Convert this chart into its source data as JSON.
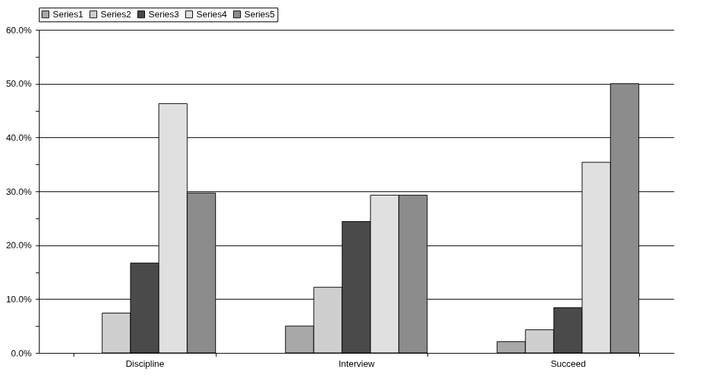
{
  "chart_data": {
    "type": "bar",
    "categories": [
      "Discipline",
      "Interview",
      "Succeed"
    ],
    "series": [
      {
        "name": "Series1",
        "color": "#a8a8a8",
        "values": [
          null,
          5.0,
          2.1
        ]
      },
      {
        "name": "Series2",
        "color": "#cfcfcf",
        "values": [
          7.4,
          12.2,
          4.3
        ]
      },
      {
        "name": "Series3",
        "color": "#4a4a4a",
        "values": [
          16.7,
          24.4,
          8.4
        ]
      },
      {
        "name": "Series4",
        "color": "#e0e0e0",
        "values": [
          46.3,
          29.3,
          35.4
        ]
      },
      {
        "name": "Series5",
        "color": "#8c8c8c",
        "values": [
          29.7,
          29.3,
          50.0
        ]
      }
    ],
    "ylim": [
      0,
      60
    ],
    "yticks": [
      {
        "value": 0,
        "label": "0.0%"
      },
      {
        "value": 5,
        "label": null
      },
      {
        "value": 10,
        "label": "10.0%"
      },
      {
        "value": 15,
        "label": null
      },
      {
        "value": 20,
        "label": "20.0%"
      },
      {
        "value": 25,
        "label": null
      },
      {
        "value": 30,
        "label": "30.0%"
      },
      {
        "value": 35,
        "label": null
      },
      {
        "value": 40,
        "label": "40.0%"
      },
      {
        "value": 45,
        "label": null
      },
      {
        "value": 50,
        "label": "50.0%"
      },
      {
        "value": 55,
        "label": null
      },
      {
        "value": 60,
        "label": "60.0%"
      }
    ],
    "grid": "y",
    "legend": "top"
  }
}
